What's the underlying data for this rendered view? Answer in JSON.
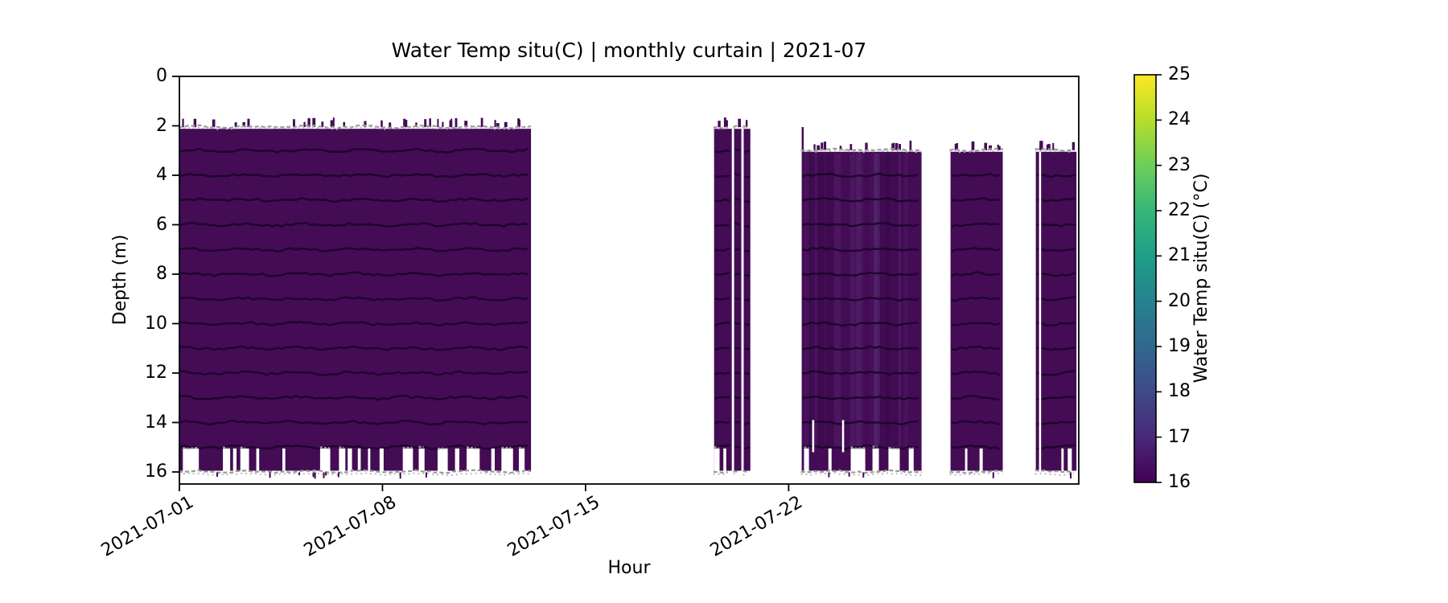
{
  "chart_data": {
    "type": "heatmap",
    "subtype": "curtain",
    "title": "Water Temp situ(C) | monthly curtain | 2021-07",
    "xlabel": "Hour",
    "ylabel": "Depth (m)",
    "x_ticks": [
      {
        "label": "2021-07-01",
        "day": 0
      },
      {
        "label": "2021-07-08",
        "day": 7
      },
      {
        "label": "2021-07-15",
        "day": 14
      },
      {
        "label": "2021-07-22",
        "day": 21
      }
    ],
    "xlim_days": [
      0,
      31
    ],
    "y_ticks": [
      0,
      2,
      4,
      6,
      8,
      10,
      12,
      14,
      16
    ],
    "ylim_depth": [
      16.5,
      0
    ],
    "grid": false,
    "colorbar": {
      "label": "Water Temp situ(C) (°C)",
      "min": 16,
      "max": 25,
      "ticks": [
        16,
        17,
        18,
        19,
        20,
        21,
        22,
        23,
        24,
        25
      ],
      "colormap": "viridis",
      "stops": [
        {
          "pos": 0.0,
          "color": "#440154"
        },
        {
          "pos": 0.111,
          "color": "#482878"
        },
        {
          "pos": 0.222,
          "color": "#3e4a89"
        },
        {
          "pos": 0.333,
          "color": "#31688e"
        },
        {
          "pos": 0.444,
          "color": "#26828e"
        },
        {
          "pos": 0.556,
          "color": "#1f9e89"
        },
        {
          "pos": 0.667,
          "color": "#35b779"
        },
        {
          "pos": 0.778,
          "color": "#6ece58"
        },
        {
          "pos": 0.889,
          "color": "#b5de2b"
        },
        {
          "pos": 1.0,
          "color": "#fde725"
        }
      ]
    },
    "approx_value_range_c": [
      16.0,
      16.4
    ],
    "value_color": "#440c54",
    "striation_color": "#190428",
    "boundary_gray": "#a0a0a0",
    "blocks": [
      {
        "name": "week1-2-curtain",
        "day_start": 0.0,
        "day_end": 12.12,
        "top_depth": 2.12,
        "bottom_depth": 16.0,
        "striation_depths": [
          3,
          4,
          5,
          6,
          7,
          8,
          9,
          10,
          11,
          12,
          13,
          14,
          15
        ],
        "top_spikes": 34,
        "streaks": 0,
        "bottom_notches": [
          {
            "day": 0.12,
            "w": 0.55
          },
          {
            "day": 1.5,
            "w": 0.25
          },
          {
            "day": 1.85,
            "w": 0.12
          },
          {
            "day": 2.1,
            "w": 0.3
          },
          {
            "day": 2.65,
            "w": 0.1
          },
          {
            "day": 3.55,
            "w": 0.1
          },
          {
            "day": 4.85,
            "w": 0.35
          },
          {
            "day": 5.5,
            "w": 0.22
          },
          {
            "day": 5.8,
            "w": 0.15
          },
          {
            "day": 6.15,
            "w": 0.1
          },
          {
            "day": 6.5,
            "w": 0.08
          },
          {
            "day": 6.9,
            "w": 0.14
          },
          {
            "day": 7.7,
            "w": 0.35
          },
          {
            "day": 8.25,
            "w": 0.2
          },
          {
            "day": 8.9,
            "w": 0.35
          },
          {
            "day": 9.5,
            "w": 0.15
          },
          {
            "day": 9.9,
            "w": 0.45
          },
          {
            "day": 10.75,
            "w": 0.12
          },
          {
            "day": 11.1,
            "w": 0.4
          },
          {
            "day": 11.7,
            "w": 0.2
          }
        ],
        "slits": []
      },
      {
        "name": "jul19-strip-1",
        "day_start": 18.43,
        "day_end": 19.04,
        "top_depth": 2.12,
        "bottom_depth": 16.0,
        "striation_depths": [
          3,
          4,
          5,
          6,
          7,
          8,
          9,
          10,
          11,
          12,
          13,
          14,
          15
        ],
        "top_spikes": 3,
        "streaks": 0,
        "bottom_notches": [
          {
            "day": 18.43,
            "w": 0.19
          },
          {
            "day": 18.75,
            "w": 0.1
          }
        ],
        "slits": []
      },
      {
        "name": "jul19-strip-2",
        "day_start": 19.12,
        "day_end": 19.37,
        "top_depth": 2.12,
        "bottom_depth": 16.0,
        "striation_depths": [
          3,
          4,
          5,
          6,
          7,
          8,
          9,
          10,
          11,
          12,
          13,
          14,
          15
        ],
        "top_spikes": 1,
        "streaks": 0,
        "bottom_notches": [],
        "slits": []
      },
      {
        "name": "jul19-strip-3",
        "day_start": 19.45,
        "day_end": 19.68,
        "top_depth": 2.12,
        "bottom_depth": 16.0,
        "striation_depths": [
          3,
          4,
          5,
          6,
          7,
          8,
          9,
          10,
          11,
          12,
          13,
          14,
          15
        ],
        "top_spikes": 1,
        "streaks": 0,
        "bottom_notches": [],
        "slits": []
      },
      {
        "name": "jul22-26-curtain",
        "day_start": 21.45,
        "day_end": 25.58,
        "top_depth": 3.05,
        "bottom_depth": 16.0,
        "striation_depths": [
          4,
          5,
          6,
          7,
          8,
          9,
          10,
          11,
          12,
          13,
          14,
          15
        ],
        "top_spikes": 12,
        "streaks": 24,
        "left_spike": {
          "depth": 2.05,
          "w_days": 0.07
        },
        "bottom_notches": [
          {
            "day": 21.53,
            "w": 0.17
          },
          {
            "day": 22.37,
            "w": 0.11
          },
          {
            "day": 23.14,
            "w": 0.5
          },
          {
            "day": 23.89,
            "w": 0.22
          },
          {
            "day": 24.44,
            "w": 0.39
          },
          {
            "day": 25.14,
            "w": 0.17
          }
        ],
        "slits": [
          {
            "day": 21.81,
            "from": 13.9,
            "to": 15.2
          },
          {
            "day": 22.84,
            "from": 13.9,
            "to": 15.2
          }
        ]
      },
      {
        "name": "jul27-28-curtain",
        "day_start": 26.58,
        "day_end": 28.38,
        "top_depth": 3.05,
        "bottom_depth": 16.0,
        "striation_depths": [
          4,
          5,
          6,
          7,
          8,
          9,
          10,
          11,
          12,
          13,
          14,
          15
        ],
        "top_spikes": 7,
        "streaks": 0,
        "bottom_notches": [
          {
            "day": 27.08,
            "w": 0.08
          },
          {
            "day": 27.58,
            "w": 0.11
          }
        ],
        "slits": []
      },
      {
        "name": "jul30-31-curtain",
        "day_start": 29.52,
        "day_end": 30.92,
        "top_depth": 3.05,
        "bottom_depth": 16.0,
        "striation_depths": [
          4,
          5,
          6,
          7,
          8,
          9,
          10,
          11,
          12,
          13,
          14,
          15
        ],
        "top_spikes": 7,
        "streaks": 0,
        "bottom_notches": [
          {
            "day": 30.4,
            "w": 0.08
          },
          {
            "day": 30.62,
            "w": 0.14
          }
        ],
        "slits": [
          {
            "day": 29.63,
            "from": 3.05,
            "to": 16.0
          }
        ]
      }
    ]
  }
}
